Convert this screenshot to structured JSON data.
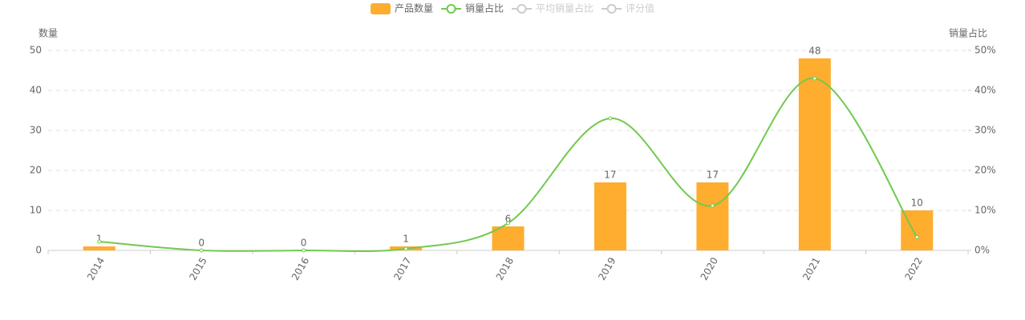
{
  "chart_data": {
    "type": "bar-line",
    "y_axis_label": "数量",
    "y2_axis_label": "销量占比",
    "categories": [
      "2014",
      "2015",
      "2016",
      "2017",
      "2018",
      "2019",
      "2020",
      "2021",
      "2022"
    ],
    "series": [
      {
        "name": "产品数量",
        "type": "bar",
        "color": "#ffad2e",
        "values": [
          1,
          0,
          0,
          1,
          6,
          17,
          17,
          48,
          10
        ]
      },
      {
        "name": "销量占比",
        "type": "line",
        "axis": "y2",
        "color": "#71c94e",
        "smooth": true,
        "values": [
          2.2,
          0,
          0,
          0.4,
          6.8,
          33,
          11.2,
          43,
          3.3
        ]
      }
    ],
    "legend_inactive": [
      {
        "name": "平均销量占比"
      },
      {
        "name": "评分值"
      }
    ],
    "ylim": [
      0,
      50
    ],
    "yticks": [
      0,
      10,
      20,
      30,
      40,
      50
    ],
    "y2lim": [
      0,
      50
    ],
    "y2ticks": [
      {
        "value": 0,
        "label": "0%"
      },
      {
        "value": 10,
        "label": "10%"
      },
      {
        "value": 20,
        "label": "20%"
      },
      {
        "value": 30,
        "label": "30%"
      },
      {
        "value": 40,
        "label": "40%"
      },
      {
        "value": 50,
        "label": "50%"
      }
    ],
    "grid": true,
    "legend_position": "top"
  }
}
